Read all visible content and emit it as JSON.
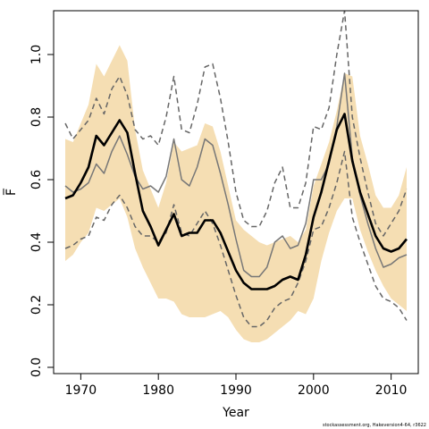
{
  "chart_data": {
    "type": "line",
    "xlabel": "Year",
    "ylabel": "F̅",
    "xlim": [
      1966.5,
      2013.5
    ],
    "ylim": [
      -0.02,
      1.14
    ],
    "x_ticks": [
      1970,
      1980,
      1990,
      2000,
      2010
    ],
    "y_ticks": [
      0.0,
      0.2,
      0.4,
      0.6,
      0.8,
      1.0
    ],
    "x_tick_labels": [
      "1970",
      "1980",
      "1990",
      "2000",
      "2010"
    ],
    "y_tick_labels": [
      "0.0",
      "0.2",
      "0.4",
      "0.6",
      "0.8",
      "1.0"
    ],
    "footnote": "stockassessment.org, Hakeversion4-64, r3622",
    "colors": {
      "band": "#f5deb3",
      "estimate": "#000000",
      "comparison": "#777777",
      "comparison_ci": "#666666"
    },
    "x": [
      1968,
      1969,
      1970,
      1971,
      1972,
      1973,
      1974,
      1975,
      1976,
      1977,
      1978,
      1979,
      1980,
      1981,
      1982,
      1983,
      1984,
      1985,
      1986,
      1987,
      1988,
      1989,
      1990,
      1991,
      1992,
      1993,
      1994,
      1995,
      1996,
      1997,
      1998,
      1999,
      2000,
      2001,
      2002,
      2003,
      2004,
      2005,
      2006,
      2007,
      2008,
      2009,
      2010,
      2011,
      2012
    ],
    "band": {
      "upper": [
        0.73,
        0.72,
        0.78,
        0.84,
        0.97,
        0.93,
        0.98,
        1.03,
        0.98,
        0.76,
        0.63,
        0.57,
        0.51,
        0.59,
        0.72,
        0.69,
        0.7,
        0.71,
        0.78,
        0.77,
        0.69,
        0.58,
        0.47,
        0.44,
        0.42,
        0.4,
        0.39,
        0.4,
        0.41,
        0.42,
        0.4,
        0.44,
        0.58,
        0.65,
        0.72,
        0.82,
        0.94,
        0.93,
        0.74,
        0.65,
        0.55,
        0.51,
        0.51,
        0.55,
        0.64
      ],
      "lower": [
        0.34,
        0.36,
        0.4,
        0.43,
        0.51,
        0.5,
        0.52,
        0.54,
        0.48,
        0.38,
        0.32,
        0.27,
        0.22,
        0.22,
        0.21,
        0.17,
        0.16,
        0.16,
        0.16,
        0.17,
        0.18,
        0.16,
        0.12,
        0.09,
        0.08,
        0.08,
        0.09,
        0.11,
        0.13,
        0.15,
        0.18,
        0.17,
        0.22,
        0.34,
        0.43,
        0.5,
        0.54,
        0.54,
        0.44,
        0.37,
        0.31,
        0.26,
        0.22,
        0.2,
        0.18
      ]
    },
    "series": [
      {
        "values": [
          0.54,
          0.55,
          0.59,
          0.64,
          0.74,
          0.71,
          0.75,
          0.79,
          0.75,
          0.62,
          0.5,
          0.45,
          0.39,
          0.44,
          0.49,
          0.42,
          0.43,
          0.43,
          0.47,
          0.47,
          0.43,
          0.37,
          0.31,
          0.27,
          0.25,
          0.25,
          0.25,
          0.26,
          0.28,
          0.29,
          0.28,
          0.36,
          0.48,
          0.56,
          0.66,
          0.76,
          0.81,
          0.66,
          0.56,
          0.49,
          0.42,
          0.38,
          0.37,
          0.38,
          0.41
        ],
        "style": "solid-thick"
      },
      {
        "values": [
          0.58,
          0.56,
          0.57,
          0.59,
          0.65,
          0.62,
          0.69,
          0.74,
          0.68,
          0.61,
          0.57,
          0.58,
          0.56,
          0.61,
          0.73,
          0.6,
          0.58,
          0.64,
          0.73,
          0.71,
          0.62,
          0.52,
          0.41,
          0.31,
          0.29,
          0.29,
          0.32,
          0.4,
          0.42,
          0.38,
          0.39,
          0.46,
          0.6,
          0.6,
          0.65,
          0.77,
          0.94,
          0.67,
          0.55,
          0.46,
          0.38,
          0.32,
          0.33,
          0.35,
          0.36
        ],
        "style": "solid-thin"
      },
      {
        "values": [
          0.78,
          0.73,
          0.76,
          0.79,
          0.86,
          0.81,
          0.89,
          0.93,
          0.87,
          0.76,
          0.73,
          0.74,
          0.71,
          0.8,
          0.93,
          0.76,
          0.75,
          0.84,
          0.96,
          0.97,
          0.86,
          0.72,
          0.56,
          0.47,
          0.45,
          0.45,
          0.5,
          0.59,
          0.64,
          0.51,
          0.51,
          0.59,
          0.77,
          0.76,
          0.83,
          1.0,
          1.14,
          0.8,
          0.67,
          0.56,
          0.46,
          0.42,
          0.46,
          0.5,
          0.57
        ],
        "style": "dashed"
      },
      {
        "values": [
          0.38,
          0.39,
          0.41,
          0.42,
          0.48,
          0.47,
          0.52,
          0.55,
          0.51,
          0.45,
          0.42,
          0.42,
          0.4,
          0.43,
          0.52,
          0.43,
          0.42,
          0.46,
          0.5,
          0.46,
          0.39,
          0.31,
          0.23,
          0.16,
          0.13,
          0.13,
          0.15,
          0.19,
          0.21,
          0.22,
          0.27,
          0.34,
          0.44,
          0.45,
          0.51,
          0.59,
          0.69,
          0.48,
          0.4,
          0.33,
          0.26,
          0.22,
          0.21,
          0.19,
          0.15
        ],
        "style": "dashed"
      }
    ],
    "grid": false,
    "legend": "none"
  }
}
